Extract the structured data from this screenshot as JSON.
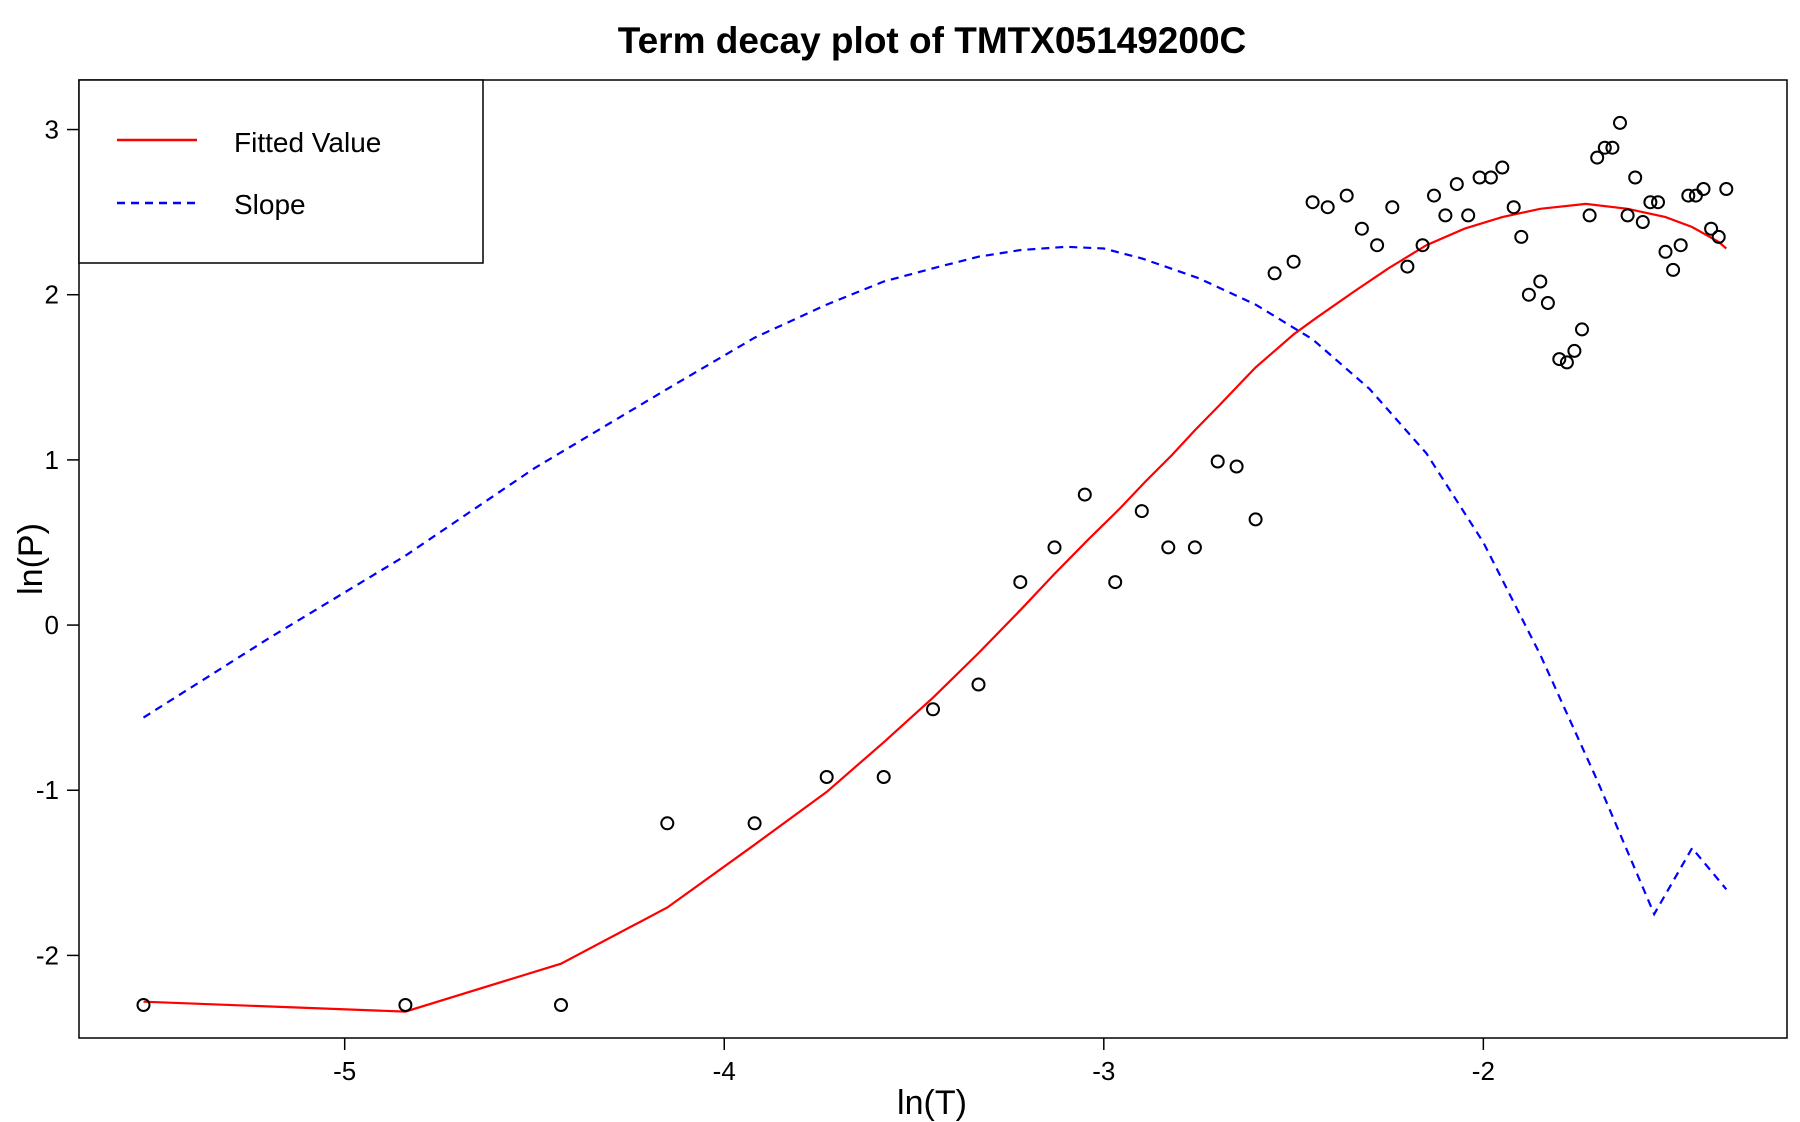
{
  "chart_data": {
    "type": "scatter",
    "title": "Term decay plot of TMTX05149200C",
    "xlabel": "ln(T)",
    "ylabel": "ln(P)",
    "xlim": [
      -5.7,
      -1.2
    ],
    "ylim": [
      -2.5,
      3.3
    ],
    "x_ticks": [
      -5,
      -4,
      -3,
      -2
    ],
    "x_tick_labels": [
      "-5",
      "-4",
      "-3",
      "-2"
    ],
    "y_ticks": [
      -2,
      -1,
      0,
      1,
      2,
      3
    ],
    "y_tick_labels": [
      "-2",
      "-1",
      "0",
      "1",
      "2",
      "3"
    ],
    "grid": false,
    "legend": {
      "position": "top-left",
      "entries": [
        {
          "label": "Fitted Value",
          "color": "#ff0000",
          "style": "solid"
        },
        {
          "label": "Slope",
          "color": "#0000ff",
          "style": "dashed"
        }
      ]
    },
    "series": [
      {
        "name": "Fitted Value",
        "kind": "line",
        "color": "#ff0000",
        "x": [
          -5.53,
          -4.84,
          -4.43,
          -4.15,
          -3.92,
          -3.73,
          -3.58,
          -3.45,
          -3.33,
          -3.22,
          -3.13,
          -3.04,
          -2.96,
          -2.89,
          -2.82,
          -2.76,
          -2.7,
          -2.65,
          -2.6,
          -2.55,
          -2.5,
          -2.44,
          -2.34,
          -2.25,
          -2.15,
          -2.05,
          -1.95,
          -1.85,
          -1.73,
          -1.62,
          -1.52,
          -1.45,
          -1.38,
          -1.36
        ],
        "y": [
          -2.28,
          -2.34,
          -2.05,
          -1.71,
          -1.33,
          -1.01,
          -0.71,
          -0.44,
          -0.17,
          0.09,
          0.31,
          0.52,
          0.7,
          0.87,
          1.03,
          1.18,
          1.32,
          1.44,
          1.56,
          1.66,
          1.76,
          1.86,
          2.02,
          2.16,
          2.3,
          2.4,
          2.47,
          2.52,
          2.55,
          2.52,
          2.47,
          2.41,
          2.32,
          2.28
        ]
      },
      {
        "name": "Slope",
        "kind": "line",
        "color": "#0000ff",
        "dashed": true,
        "x": [
          -5.53,
          -5.2,
          -4.84,
          -4.5,
          -4.15,
          -3.92,
          -3.73,
          -3.58,
          -3.45,
          -3.33,
          -3.22,
          -3.1,
          -3.0,
          -2.9,
          -2.75,
          -2.6,
          -2.45,
          -2.3,
          -2.15,
          -2.0,
          -1.85,
          -1.7,
          -1.55,
          -1.45,
          -1.36
        ],
        "y": [
          -0.56,
          -0.08,
          0.42,
          0.95,
          1.43,
          1.74,
          1.94,
          2.08,
          2.16,
          2.23,
          2.27,
          2.29,
          2.28,
          2.22,
          2.1,
          1.94,
          1.73,
          1.43,
          1.04,
          0.5,
          -0.18,
          -0.94,
          -1.75,
          -1.35,
          -1.6
        ]
      },
      {
        "name": "",
        "kind": "points",
        "color": "#000000",
        "x": [
          -5.53,
          -4.84,
          -4.43,
          -4.15,
          -3.92,
          -3.73,
          -3.58,
          -3.45,
          -3.33,
          -3.22,
          -3.13,
          -3.05,
          -2.97,
          -2.9,
          -2.83,
          -2.76,
          -2.7,
          -2.65,
          -2.6,
          -2.55,
          -2.5,
          -2.45,
          -2.41,
          -2.36,
          -2.32,
          -2.28,
          -2.24,
          -2.2,
          -2.16,
          -2.13,
          -2.1,
          -2.07,
          -2.04,
          -2.01,
          -1.98,
          -1.95,
          -1.92,
          -1.9,
          -1.88,
          -1.85,
          -1.83,
          -1.8,
          -1.78,
          -1.76,
          -1.74,
          -1.72,
          -1.7,
          -1.68,
          -1.66,
          -1.64,
          -1.62,
          -1.6,
          -1.58,
          -1.56,
          -1.54,
          -1.52,
          -1.5,
          -1.48,
          -1.46,
          -1.44,
          -1.42,
          -1.4,
          -1.38,
          -1.36
        ],
        "y": [
          -2.3,
          -2.3,
          -2.3,
          -1.2,
          -1.2,
          -0.92,
          -0.92,
          -0.51,
          -0.36,
          0.26,
          0.47,
          0.79,
          0.26,
          0.69,
          0.47,
          0.47,
          0.99,
          0.96,
          0.64,
          2.13,
          2.2,
          2.56,
          2.53,
          2.6,
          2.4,
          2.3,
          2.53,
          2.17,
          2.3,
          2.6,
          2.48,
          2.67,
          2.48,
          2.71,
          2.71,
          2.77,
          2.53,
          2.35,
          2.0,
          2.08,
          1.95,
          1.61,
          1.59,
          1.66,
          1.79,
          2.48,
          2.83,
          2.89,
          2.89,
          3.04,
          2.48,
          2.71,
          2.44,
          2.56,
          2.56,
          2.26,
          2.15,
          2.3,
          2.6,
          2.6,
          2.64,
          2.4,
          2.35,
          2.64
        ]
      }
    ]
  }
}
